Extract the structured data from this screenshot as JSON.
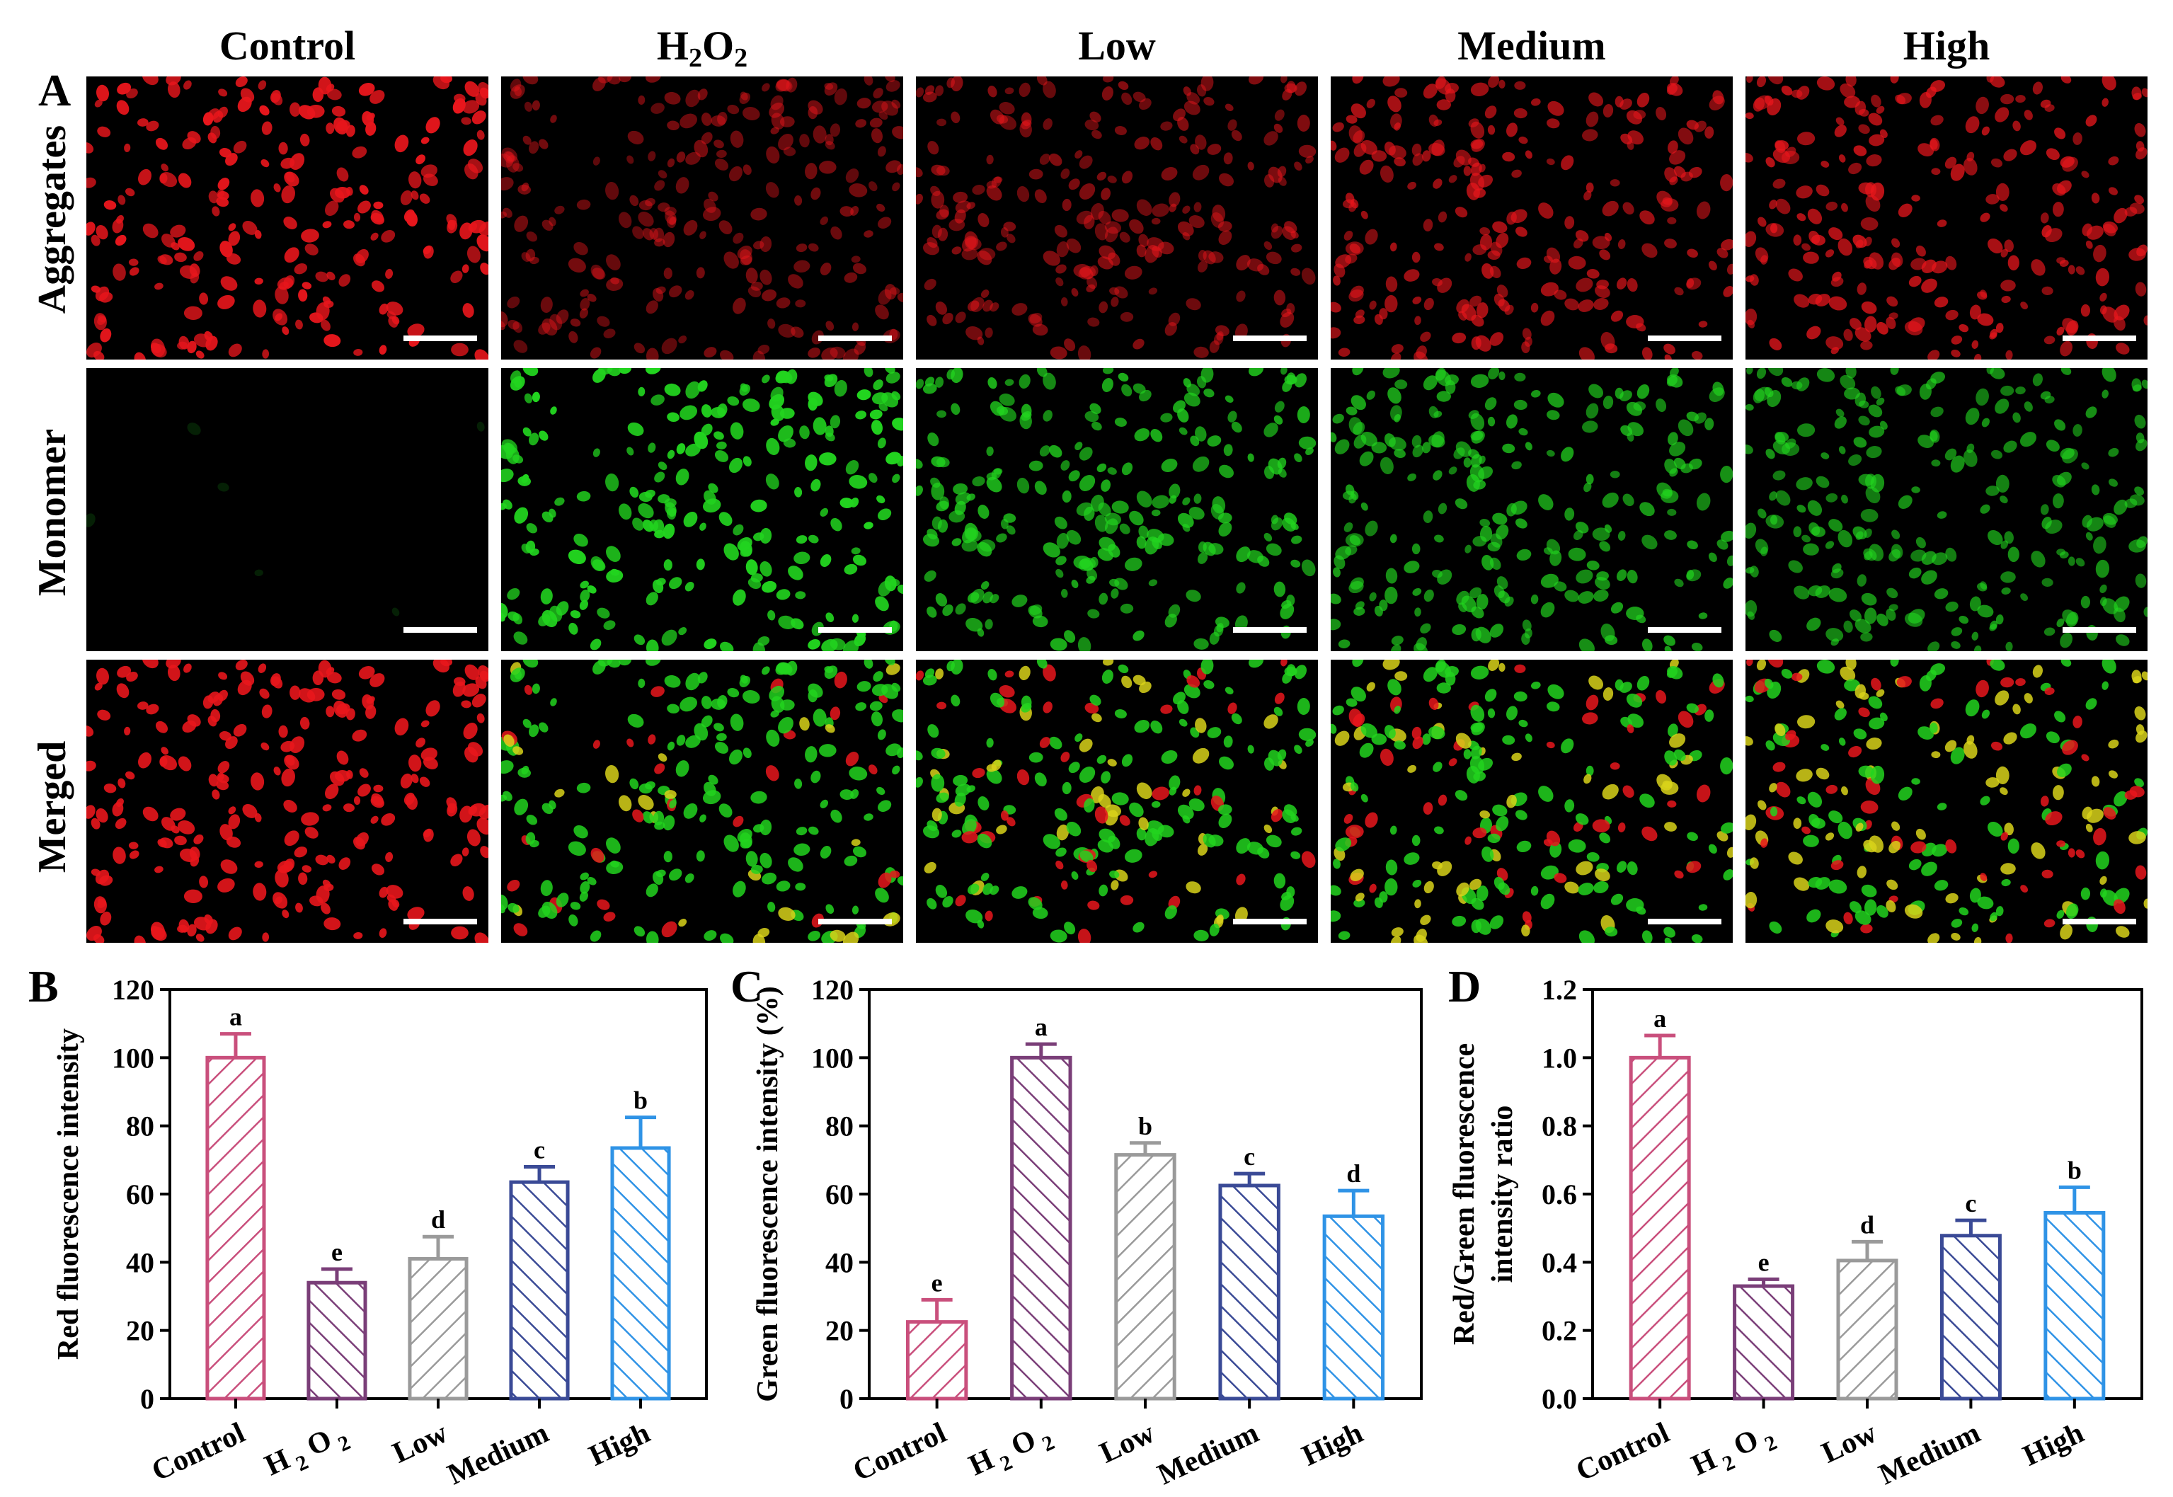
{
  "figure": {
    "panel_letters": [
      "A",
      "B",
      "C",
      "D"
    ],
    "column_headers": [
      {
        "text": "Control"
      },
      {
        "text": "H",
        "sub": "2",
        "text2": "O",
        "sub2": "2"
      },
      {
        "text": "Low"
      },
      {
        "text": "Medium"
      },
      {
        "text": "High"
      }
    ],
    "row_labels": [
      "Aggregates",
      "Monomer",
      "Merged"
    ],
    "micrographs": {
      "aggregates_red_intensity": [
        1.0,
        0.34,
        0.41,
        0.63,
        0.73
      ],
      "monomer_green_intensity": [
        0.02,
        1.0,
        0.71,
        0.62,
        0.53
      ],
      "colors": {
        "red": "#e8161c",
        "green": "#22d41f",
        "yellow": "#d8d21a",
        "background": "#000000"
      }
    }
  },
  "chart_data": [
    {
      "type": "bar",
      "panel": "B",
      "categories": [
        "Control",
        "H2O2",
        "Low",
        "Medium",
        "High"
      ],
      "values": [
        100,
        34,
        41,
        63.5,
        73.5
      ],
      "errors": [
        7,
        4,
        6.5,
        4.5,
        9
      ],
      "letters": [
        "a",
        "e",
        "d",
        "c",
        "b"
      ],
      "ylabel": "Red fluorescence intensity",
      "ylim": [
        0,
        120
      ],
      "yticks": [
        "0",
        "20",
        "40",
        "60",
        "80",
        "100",
        "120"
      ],
      "colors": [
        "#c94f7c",
        "#7a3e78",
        "#9a9a9a",
        "#3a4a96",
        "#2f93e6"
      ],
      "fill": "diagonal-hatch"
    },
    {
      "type": "bar",
      "panel": "C",
      "categories": [
        "Control",
        "H2O2",
        "Low",
        "Medium",
        "High"
      ],
      "values": [
        22.5,
        100,
        71.5,
        62.5,
        53.5
      ],
      "errors": [
        6.5,
        4,
        3.5,
        3.5,
        7.5
      ],
      "letters": [
        "e",
        "a",
        "b",
        "c",
        "d"
      ],
      "ylabel": "Green fluorescence intensity (%)",
      "ylim": [
        0,
        120
      ],
      "yticks": [
        "0",
        "20",
        "40",
        "60",
        "80",
        "100",
        "120"
      ],
      "colors": [
        "#c94f7c",
        "#7a3e78",
        "#9a9a9a",
        "#3a4a96",
        "#2f93e6"
      ],
      "fill": "diagonal-hatch"
    },
    {
      "type": "bar",
      "panel": "D",
      "categories": [
        "Control",
        "H2O2",
        "Low",
        "Medium",
        "High"
      ],
      "values": [
        1.0,
        0.33,
        0.405,
        0.478,
        0.545
      ],
      "errors": [
        0.065,
        0.02,
        0.055,
        0.045,
        0.075
      ],
      "letters": [
        "a",
        "e",
        "d",
        "c",
        "b"
      ],
      "ylabel_lines": [
        "Red/Green fluorescence",
        "intensity ratio"
      ],
      "ylim": [
        0,
        1.2
      ],
      "yticks": [
        "0.0",
        "0.2",
        "0.4",
        "0.6",
        "0.8",
        "1.0",
        "1.2"
      ],
      "colors": [
        "#c94f7c",
        "#7a3e78",
        "#9a9a9a",
        "#3a4a96",
        "#2f93e6"
      ],
      "fill": "diagonal-hatch"
    }
  ]
}
